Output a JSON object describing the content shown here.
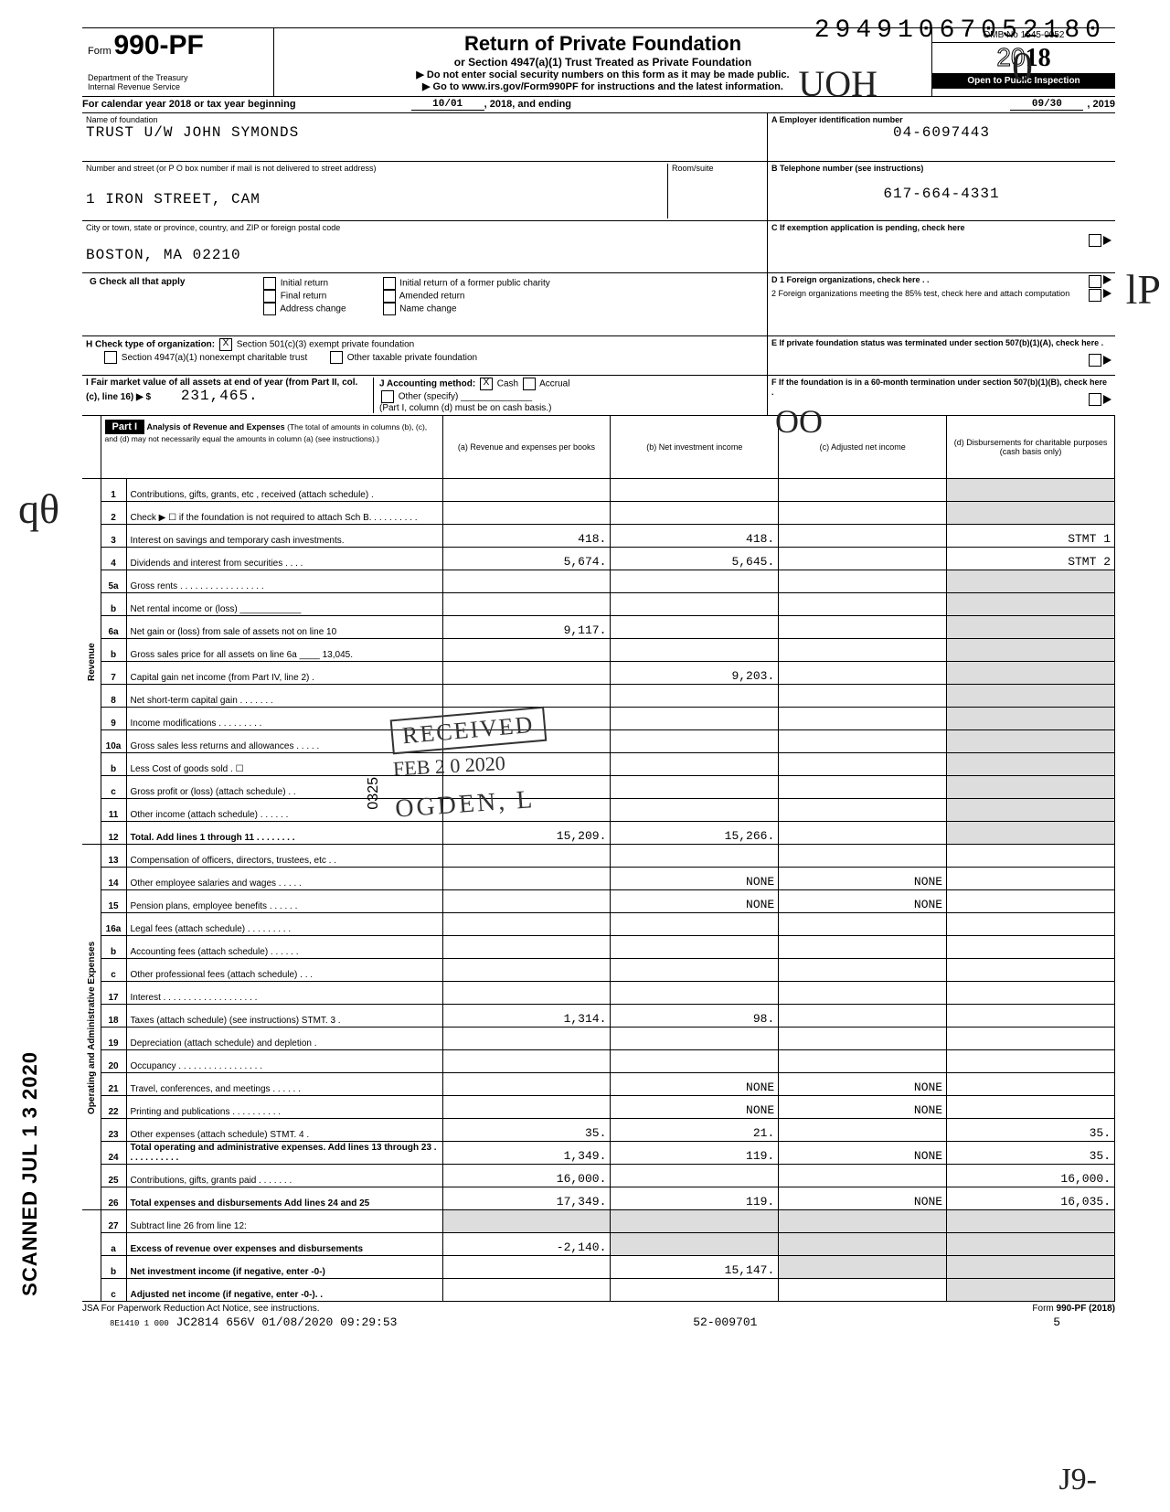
{
  "top_id": "29491067052180",
  "form_no_prefix": "Form",
  "form_no": "990-PF",
  "dept": "Department of the Treasury\nInternal Revenue Service",
  "title": "Return of Private Foundation",
  "subtitle": "or Section 4947(a)(1) Trust Treated as Private Foundation",
  "warn": "▶ Do not enter social security numbers on this form as it may be made public.",
  "goto": "▶ Go to www.irs.gov/Form990PF for instructions and the latest information.",
  "omb": "OMB No 1545-0052",
  "year_full": "2018",
  "open": "Open to Public Inspection",
  "cal_text_a": "For calendar year 2018 or tax year beginning",
  "cal_begin": "10/01",
  "cal_text_b": ", 2018, and ending",
  "cal_end": "09/30",
  "cal_text_c": ", 20",
  "cal_end_yr": "19",
  "labels": {
    "name": "Name of foundation",
    "addr": "Number and street (or P O box number if mail is not delivered to street address)",
    "room": "Room/suite",
    "city": "City or town, state or province, country, and ZIP or foreign postal code",
    "A": "A  Employer identification number",
    "B": "B  Telephone number (see instructions)",
    "C": "C  If exemption application is pending, check here",
    "D1": "D 1 Foreign organizations, check here . .",
    "D2": "2 Foreign organizations meeting the 85% test, check here and attach computation",
    "E": "E  If private foundation status was terminated under section 507(b)(1)(A), check here .",
    "F": "F  If the foundation is in a 60-month termination under section 507(b)(1)(B), check here .",
    "G": "G  Check all that apply",
    "H": "H  Check type of organization:",
    "I": "I  Fair market value of all assets at end of year (from Part II, col. (c), line 16) ▶ $",
    "J": "J  Accounting method:",
    "Jnote": "(Part I, column (d) must be on cash basis.)"
  },
  "g_opts": [
    "Initial return",
    "Final return",
    "Address change",
    "Initial return of a former public charity",
    "Amended return",
    "Name change"
  ],
  "h_opts": [
    "Section 501(c)(3) exempt private foundation",
    "Section 4947(a)(1) nonexempt charitable trust",
    "Other taxable private foundation"
  ],
  "j_opts": [
    "Cash",
    "Accrual",
    "Other (specify)"
  ],
  "name_val": "TRUST U/W JOHN SYMONDS",
  "addr_val": "1 IRON STREET, CAM",
  "city_val": "BOSTON, MA 02210",
  "ein": "04-6097443",
  "phone": "617-664-4331",
  "fmv": "231,465.",
  "part1_title": "Analysis of Revenue and Expenses",
  "part1_note": "(The total of amounts in columns (b), (c), and (d) may not necessarily equal the amounts in column (a) (see instructions).)",
  "col_heads": {
    "a": "(a) Revenue and expenses per books",
    "b": "(b) Net investment income",
    "c": "(c) Adjusted net income",
    "d": "(d) Disbursements for charitable purposes (cash basis only)"
  },
  "rev_label": "Revenue",
  "exp_label": "Operating and Administrative Expenses",
  "rows": [
    {
      "n": "1",
      "d": "Contributions, gifts, grants, etc , received (attach schedule) ."
    },
    {
      "n": "2",
      "d": "Check ▶ ☐ if the foundation is not required to attach Sch B. . . . . . . . . ."
    },
    {
      "n": "3",
      "d": "Interest on savings and temporary cash investments.",
      "a": "418.",
      "b": "418.",
      "stmt": "STMT 1"
    },
    {
      "n": "4",
      "d": "Dividends and interest from securities . . . .",
      "a": "5,674.",
      "b": "5,645.",
      "stmt": "STMT 2"
    },
    {
      "n": "5a",
      "d": "Gross rents . . . . . . . . . . . . . . . . ."
    },
    {
      "n": "b",
      "d": "Net rental income or (loss) ____________"
    },
    {
      "n": "6a",
      "d": "Net gain or (loss) from sale of assets not on line 10",
      "a": "9,117."
    },
    {
      "n": "b",
      "d": "Gross sales price for all assets on line 6a ____ 13,045."
    },
    {
      "n": "7",
      "d": "Capital gain net income (from Part IV, line 2) .",
      "b": "9,203."
    },
    {
      "n": "8",
      "d": "Net short-term capital gain . . . . . . ."
    },
    {
      "n": "9",
      "d": "Income modifications . . . . . . . . ."
    },
    {
      "n": "10a",
      "d": "Gross sales less returns and allowances . . . . ."
    },
    {
      "n": "b",
      "d": "Less Cost of goods sold . ☐"
    },
    {
      "n": "c",
      "d": "Gross profit or (loss) (attach schedule) . ."
    },
    {
      "n": "11",
      "d": "Other income (attach schedule) . . . . . ."
    },
    {
      "n": "12",
      "d": "Total. Add lines 1 through 11 . . . . . . . .",
      "a": "15,209.",
      "b": "15,266.",
      "bold": true
    }
  ],
  "exp_rows": [
    {
      "n": "13",
      "d": "Compensation of officers, directors, trustees, etc . ."
    },
    {
      "n": "14",
      "d": "Other employee salaries and wages . . . . .",
      "b": "NONE",
      "c": "NONE"
    },
    {
      "n": "15",
      "d": "Pension plans, employee benefits . . . . . .",
      "b": "NONE",
      "c": "NONE"
    },
    {
      "n": "16a",
      "d": "Legal fees (attach schedule) . . . . . . . . ."
    },
    {
      "n": "b",
      "d": "Accounting fees (attach schedule) . . . . . ."
    },
    {
      "n": "c",
      "d": "Other professional fees (attach schedule) . . ."
    },
    {
      "n": "17",
      "d": "Interest . . . . . . . . . . . . . . . . . . ."
    },
    {
      "n": "18",
      "d": "Taxes (attach schedule) (see instructions) STMT. 3 .",
      "a": "1,314.",
      "b": "98."
    },
    {
      "n": "19",
      "d": "Depreciation (attach schedule) and depletion ."
    },
    {
      "n": "20",
      "d": "Occupancy . . . . . . . . . . . . . . . . ."
    },
    {
      "n": "21",
      "d": "Travel, conferences, and meetings . . . . . .",
      "b": "NONE",
      "c": "NONE"
    },
    {
      "n": "22",
      "d": "Printing and publications . . . . . . . . . .",
      "b": "NONE",
      "c": "NONE"
    },
    {
      "n": "23",
      "d": "Other expenses (attach schedule) STMT. 4 .",
      "a": "35.",
      "b": "21.",
      "ddd": "35."
    },
    {
      "n": "24",
      "d": "Total operating and administrative expenses. Add lines 13 through 23 . . . . . . . . . . .",
      "a": "1,349.",
      "b": "119.",
      "c": "NONE",
      "ddd": "35.",
      "bold": true
    },
    {
      "n": "25",
      "d": "Contributions, gifts, grants paid . . . . . . .",
      "a": "16,000.",
      "ddd": "16,000."
    },
    {
      "n": "26",
      "d": "Total expenses and disbursements Add lines 24 and 25",
      "a": "17,349.",
      "b": "119.",
      "c": "NONE",
      "ddd": "16,035.",
      "bold": true
    }
  ],
  "bottom_rows": [
    {
      "n": "27",
      "d": "Subtract line 26 from line 12:"
    },
    {
      "n": "a",
      "d": "Excess of revenue over expenses and disbursements",
      "a": "-2,140.",
      "bold": true
    },
    {
      "n": "b",
      "d": "Net investment income (if negative, enter -0-)",
      "b": "15,147.",
      "bold": true
    },
    {
      "n": "c",
      "d": "Adjusted net income (if negative, enter -0-). .",
      "bold": true
    }
  ],
  "jsa": "JSA  For Paperwork Reduction Act Notice, see instructions.",
  "form_foot": "Form 990-PF (2018)",
  "foot_code": "8E1410 1 000",
  "foot_line": "JC2814 656V 01/08/2020 09:29:53",
  "foot_mid": "52-009701",
  "foot_right": "5",
  "scanned": "SCANNED JUL 1 3 2020",
  "stamp": {
    "received": "RECEIVED",
    "date": "FEB 2 0 2020",
    "place": "OGDEN, L",
    "code": "0325"
  }
}
